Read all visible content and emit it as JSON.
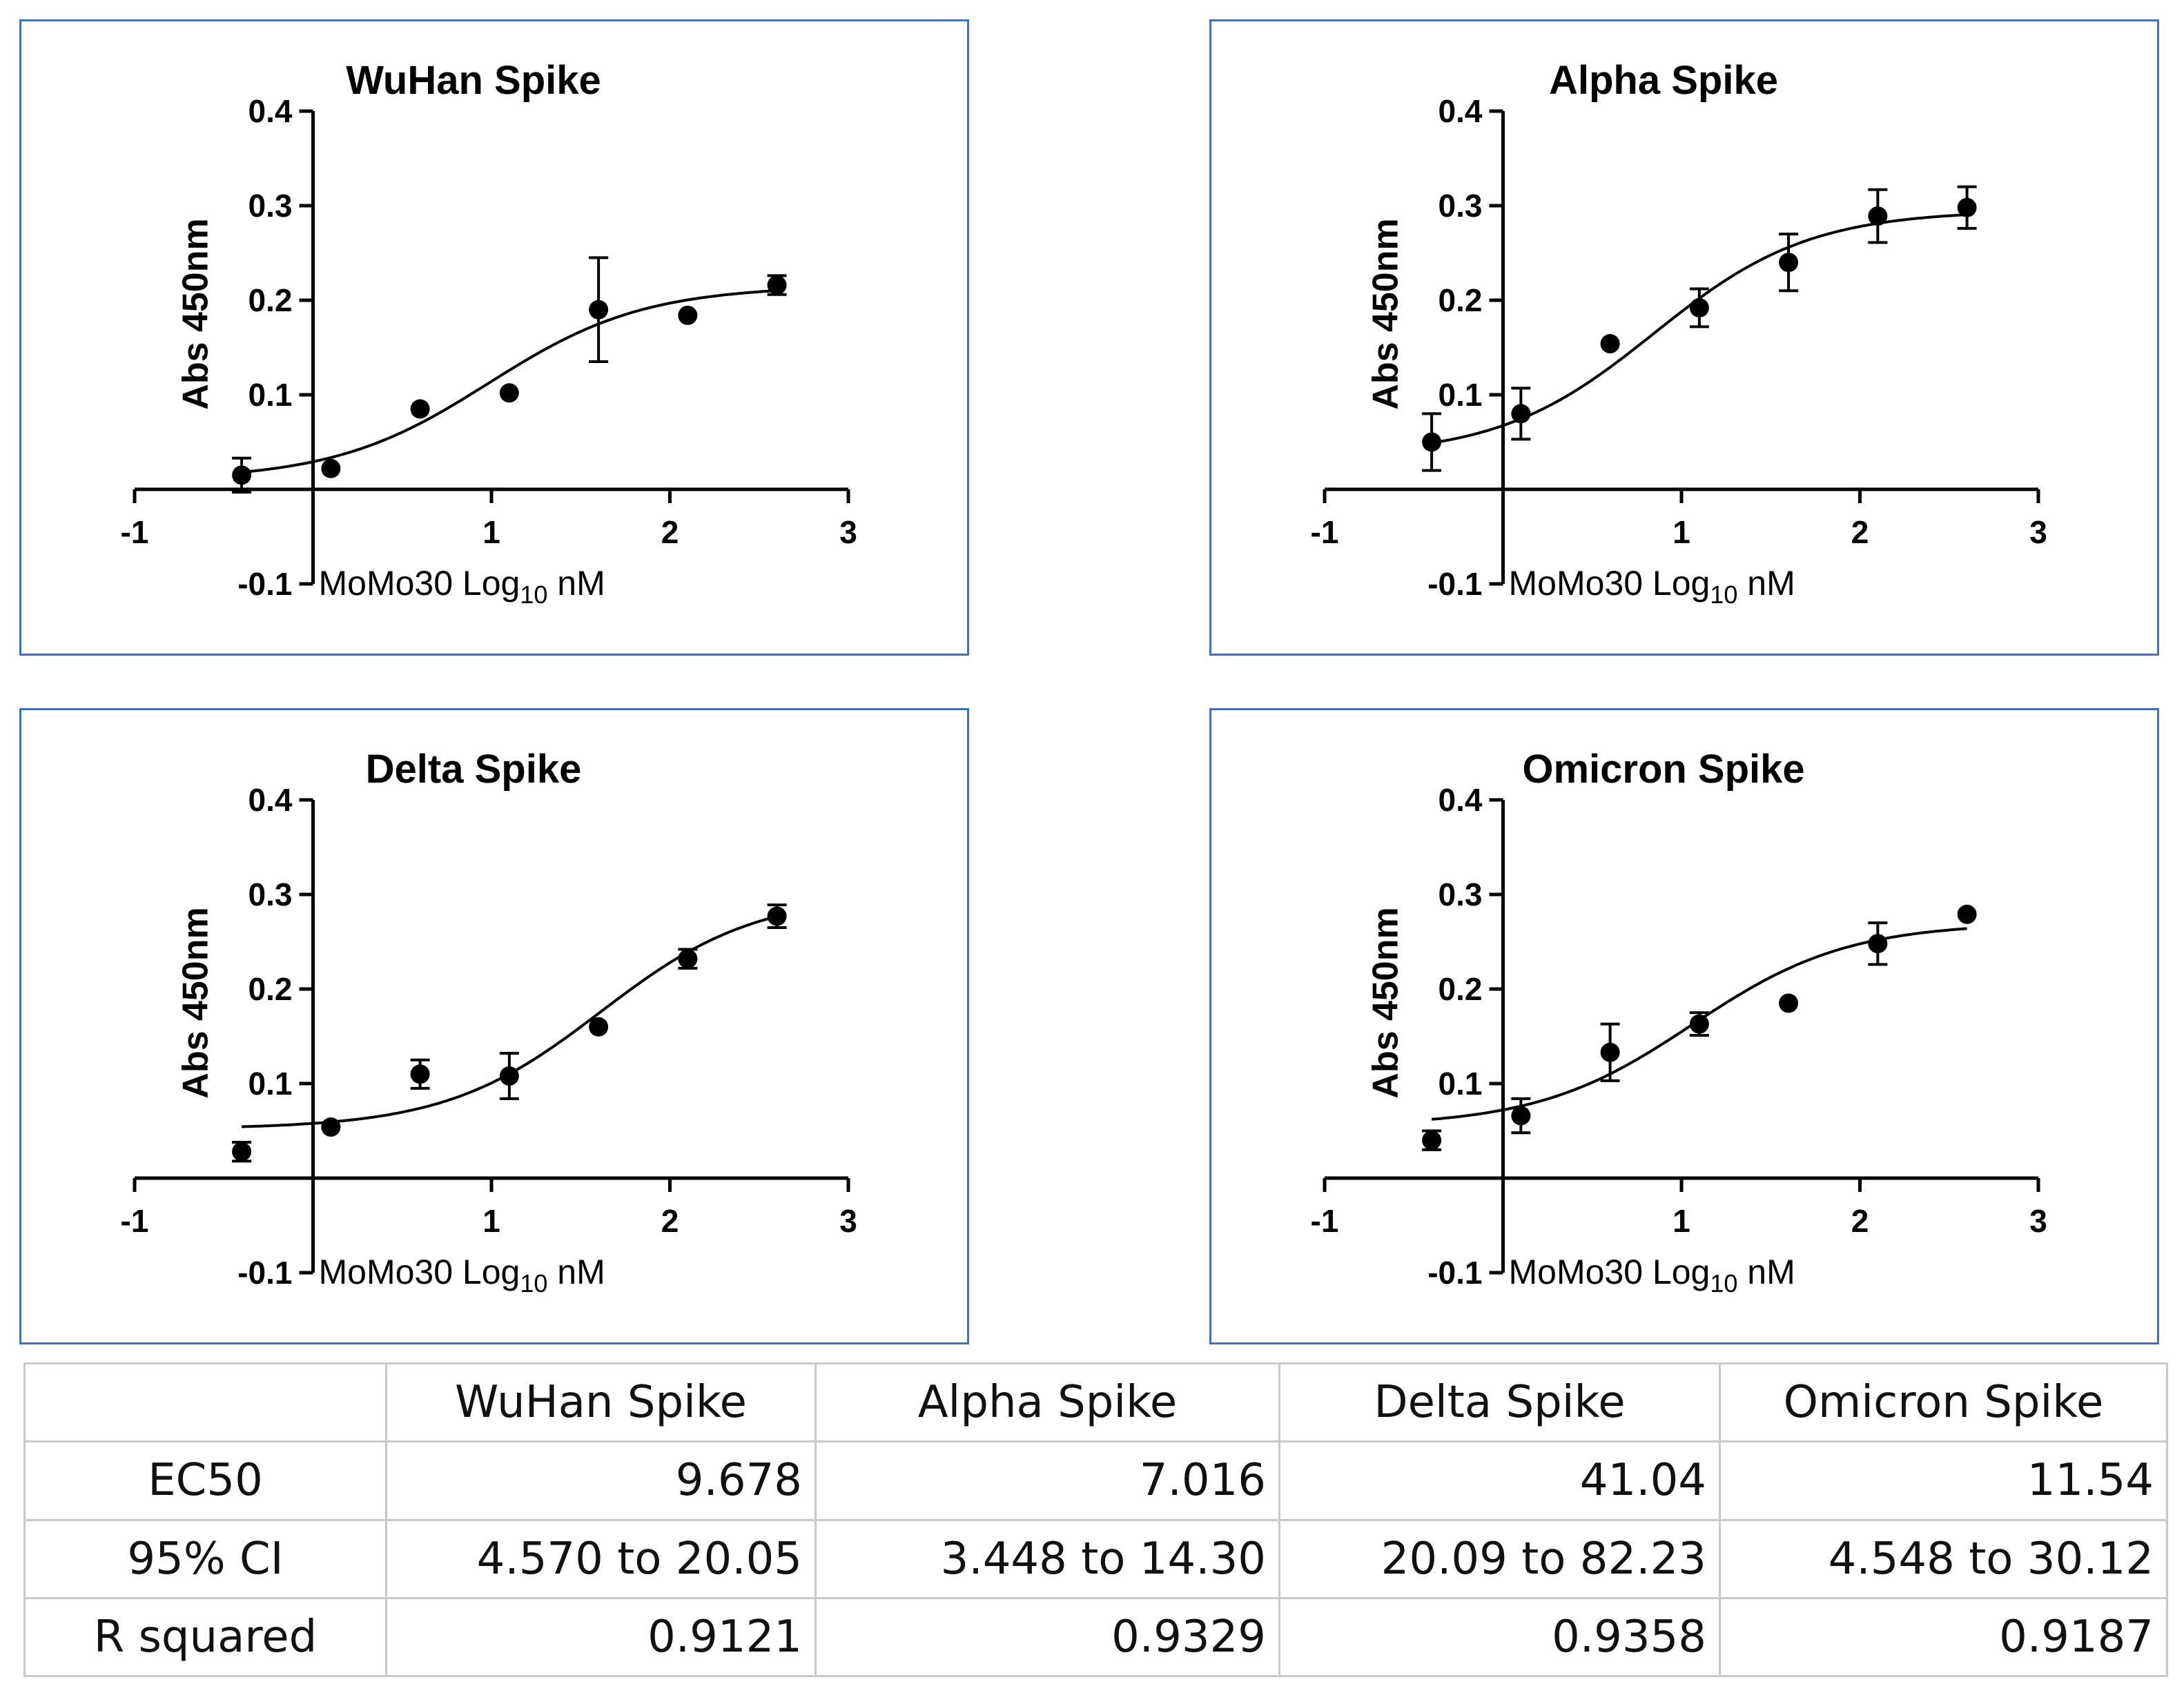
{
  "chart_data": [
    {
      "type": "scatter",
      "title": "WuHan Spike",
      "xlabel": "MoMo30 Log",
      "xlabel_subscript": "10",
      "xlabel_unit": " nM",
      "ylabel": "Abs 450nm",
      "xlim": [
        -1,
        3
      ],
      "ylim": [
        -0.1,
        0.4
      ],
      "xticks": [
        "-1",
        "1",
        "2",
        "3"
      ],
      "yticks": [
        "-0.1",
        "0.1",
        "0.2",
        "0.3",
        "0.4"
      ],
      "points": [
        {
          "x": -0.4,
          "y": 0.015,
          "err": 0.018
        },
        {
          "x": 0.1,
          "y": 0.022,
          "err": 0
        },
        {
          "x": 0.6,
          "y": 0.085,
          "err": 0
        },
        {
          "x": 1.1,
          "y": 0.102,
          "err": 0
        },
        {
          "x": 1.6,
          "y": 0.19,
          "err": 0.055
        },
        {
          "x": 2.1,
          "y": 0.184,
          "err": 0
        },
        {
          "x": 2.6,
          "y": 0.216,
          "err": 0.01
        }
      ],
      "fit": {
        "bottom": 0.01,
        "top": 0.215,
        "logec50": 0.986,
        "hill": 1.0
      }
    },
    {
      "type": "scatter",
      "title": "Alpha Spike",
      "xlabel": "MoMo30 Log",
      "xlabel_subscript": "10",
      "xlabel_unit": " nM",
      "ylabel": "Abs 450nm",
      "xlim": [
        -1,
        3
      ],
      "ylim": [
        -0.1,
        0.4
      ],
      "xticks": [
        "-1",
        "1",
        "2",
        "3"
      ],
      "yticks": [
        "-0.1",
        "0.1",
        "0.2",
        "0.3",
        "0.4"
      ],
      "points": [
        {
          "x": -0.4,
          "y": 0.05,
          "err": 0.03
        },
        {
          "x": 0.1,
          "y": 0.08,
          "err": 0.027
        },
        {
          "x": 0.6,
          "y": 0.154,
          "err": 0
        },
        {
          "x": 1.1,
          "y": 0.192,
          "err": 0.02
        },
        {
          "x": 1.6,
          "y": 0.24,
          "err": 0.03
        },
        {
          "x": 2.1,
          "y": 0.289,
          "err": 0.028
        },
        {
          "x": 2.6,
          "y": 0.298,
          "err": 0.022
        }
      ],
      "fit": {
        "bottom": 0.035,
        "top": 0.295,
        "logec50": 0.846,
        "hill": 1.0
      }
    },
    {
      "type": "scatter",
      "title": "Delta Spike",
      "xlabel": "MoMo30 Log",
      "xlabel_subscript": "10",
      "xlabel_unit": " nM",
      "ylabel": "Abs 450nm",
      "xlim": [
        -1,
        3
      ],
      "ylim": [
        -0.1,
        0.4
      ],
      "xticks": [
        "-1",
        "1",
        "2",
        "3"
      ],
      "yticks": [
        "-0.1",
        "0.1",
        "0.2",
        "0.3",
        "0.4"
      ],
      "points": [
        {
          "x": -0.4,
          "y": 0.028,
          "err": 0.01
        },
        {
          "x": 0.1,
          "y": 0.054,
          "err": 0
        },
        {
          "x": 0.6,
          "y": 0.11,
          "err": 0.015
        },
        {
          "x": 1.1,
          "y": 0.108,
          "err": 0.024
        },
        {
          "x": 1.6,
          "y": 0.16,
          "err": 0
        },
        {
          "x": 2.1,
          "y": 0.232,
          "err": 0.01
        },
        {
          "x": 2.6,
          "y": 0.277,
          "err": 0.012
        }
      ],
      "fit": {
        "bottom": 0.052,
        "top": 0.3,
        "logec50": 1.613,
        "hill": 1.0
      }
    },
    {
      "type": "scatter",
      "title": "Omicron Spike",
      "xlabel": "MoMo30 Log",
      "xlabel_subscript": "10",
      "xlabel_unit": " nM",
      "ylabel": "Abs 450nm",
      "xlim": [
        -1,
        3
      ],
      "ylim": [
        -0.1,
        0.4
      ],
      "xticks": [
        "-1",
        "1",
        "2",
        "3"
      ],
      "yticks": [
        "-0.1",
        "0.1",
        "0.2",
        "0.3",
        "0.4"
      ],
      "points": [
        {
          "x": -0.4,
          "y": 0.04,
          "err": 0.01
        },
        {
          "x": 0.1,
          "y": 0.066,
          "err": 0.018
        },
        {
          "x": 0.6,
          "y": 0.133,
          "err": 0.03
        },
        {
          "x": 1.1,
          "y": 0.163,
          "err": 0.012
        },
        {
          "x": 1.6,
          "y": 0.185,
          "err": 0
        },
        {
          "x": 2.1,
          "y": 0.248,
          "err": 0.022
        },
        {
          "x": 2.6,
          "y": 0.279,
          "err": 0
        }
      ],
      "fit": {
        "bottom": 0.055,
        "top": 0.27,
        "logec50": 1.062,
        "hill": 1.0
      }
    }
  ],
  "table": {
    "columns": [
      "WuHan Spike",
      "Alpha Spike",
      "Delta Spike",
      "Omicron Spike"
    ],
    "rows": [
      {
        "label": "EC50",
        "values": [
          "9.678",
          "7.016",
          "41.04",
          "11.54"
        ]
      },
      {
        "label": "95% CI",
        "values": [
          "4.570 to 20.05",
          "3.448 to 14.30",
          "20.09 to 82.23",
          "4.548 to 30.12"
        ]
      },
      {
        "label": "R squared",
        "values": [
          "0.9121",
          "0.9329",
          "0.9358",
          "0.9187"
        ]
      }
    ]
  }
}
